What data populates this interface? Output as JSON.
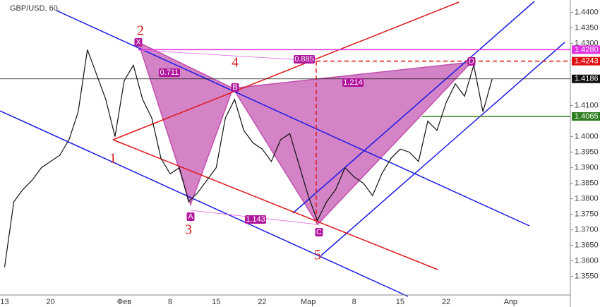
{
  "chart_data": {
    "type": "line",
    "title": "GBP/USD, 60,",
    "color": "#111111",
    "categories": [
      "13",
      null,
      null,
      null,
      null,
      "20",
      null,
      null,
      null,
      null,
      null,
      null,
      null,
      "Фев",
      null,
      null,
      null,
      null,
      "8",
      null,
      null,
      null,
      null,
      "15",
      null,
      null,
      null,
      null,
      "22",
      null,
      null,
      null,
      null,
      "Мар",
      null,
      null,
      null,
      null,
      "8",
      null,
      null,
      null,
      null,
      "15",
      null,
      null,
      null,
      null,
      "22",
      null,
      null,
      null,
      null,
      null,
      null,
      "Апр",
      null,
      null,
      null,
      null,
      null,
      null
    ],
    "values": [
      1.358,
      1.379,
      1.383,
      1.386,
      1.39,
      1.392,
      1.394,
      1.399,
      1.408,
      1.428,
      1.42,
      1.412,
      1.4,
      1.418,
      1.423,
      1.412,
      1.406,
      1.393,
      1.388,
      1.39,
      1.379,
      1.382,
      1.386,
      1.39,
      1.406,
      1.412,
      1.402,
      1.398,
      1.396,
      1.392,
      1.399,
      1.401,
      1.391,
      1.381,
      1.373,
      1.379,
      1.383,
      1.39,
      1.387,
      1.385,
      1.381,
      1.388,
      1.393,
      1.396,
      1.395,
      1.392,
      1.405,
      1.402,
      1.411,
      1.417,
      1.413,
      1.423,
      1.408,
      1.4186,
      null,
      null,
      null,
      null,
      null,
      null,
      null,
      null
    ],
    "ylim": [
      1.349,
      1.444
    ],
    "yticks": [
      {
        "value": 1.44,
        "label": "1.4400"
      },
      {
        "value": 1.435,
        "label": "1.4350"
      },
      {
        "value": 1.43,
        "label": "1.4300"
      },
      {
        "value": 1.41,
        "label": "1.4100"
      },
      {
        "value": 1.4,
        "label": "1.4000"
      },
      {
        "value": 1.395,
        "label": "1.3950"
      },
      {
        "value": 1.39,
        "label": "1.3900"
      },
      {
        "value": 1.385,
        "label": "1.3850"
      },
      {
        "value": 1.38,
        "label": "1.3800"
      },
      {
        "value": 1.375,
        "label": "1.3750"
      },
      {
        "value": 1.37,
        "label": "1.3700"
      },
      {
        "value": 1.365,
        "label": "1.3650"
      },
      {
        "value": 1.36,
        "label": "1.3600"
      },
      {
        "value": 1.355,
        "label": "1.3550"
      }
    ],
    "levels": [
      {
        "value": 1.428,
        "label": "1.4280",
        "color": "#e030e0"
      },
      {
        "value": 1.4243,
        "label": "1.4243",
        "color": "#e01010"
      },
      {
        "value": 1.4186,
        "label": "1.4186",
        "color": "#111111"
      },
      {
        "value": 1.4065,
        "label": "1.4065",
        "color": "#2e7d20"
      }
    ],
    "annotations": [
      "X",
      "A",
      "B",
      "C",
      "D",
      "0.711",
      "0.885",
      "1.214",
      "1.143",
      "1",
      "2",
      "3",
      "4",
      "5"
    ]
  }
}
